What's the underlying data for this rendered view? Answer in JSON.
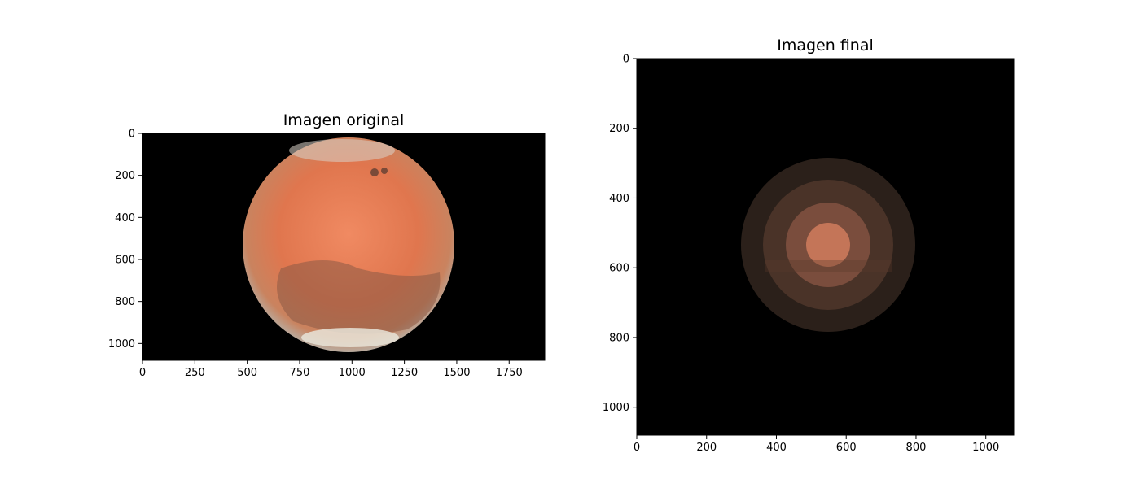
{
  "panels": [
    {
      "title": "Imagen original",
      "x_ticks": [
        "0",
        "250",
        "500",
        "750",
        "1000",
        "1250",
        "1500",
        "1750"
      ],
      "y_ticks": [
        "0",
        "200",
        "400",
        "600",
        "800",
        "1000"
      ],
      "image_extent": {
        "width": 1920,
        "height": 1080
      }
    },
    {
      "title": "Imagen final",
      "x_ticks": [
        "0",
        "200",
        "400",
        "600",
        "800",
        "1000"
      ],
      "y_ticks": [
        "0",
        "200",
        "400",
        "600",
        "800",
        "1000"
      ],
      "image_extent": {
        "width": 1080,
        "height": 1080
      }
    }
  ],
  "colors": {
    "background": "#000000",
    "mars_orange": "#e0764e",
    "mars_dark": "#8a5a45",
    "polar_cap": "#e8e4d8"
  }
}
